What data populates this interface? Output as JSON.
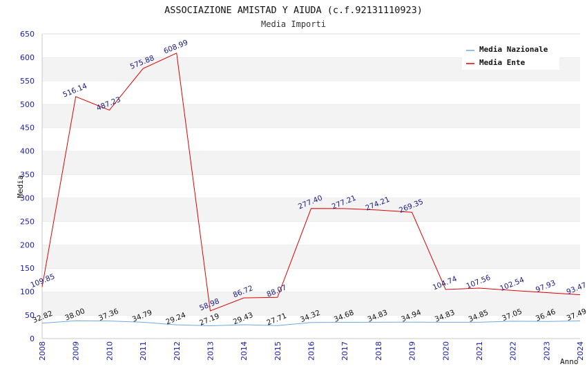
{
  "title": "ASSOCIAZIONE AMISTAD Y AIUDA (c.f.92131110923)",
  "subtitle": "Media Importi",
  "chart_data": {
    "type": "line",
    "title": "ASSOCIAZIONE AMISTAD Y AIUDA (c.f.92131110923)",
    "subtitle": "Media Importi",
    "xlabel": "Anno",
    "ylabel": "Media",
    "ylim": [
      0,
      650
    ],
    "yticks": [
      0,
      50,
      100,
      150,
      200,
      250,
      300,
      350,
      400,
      450,
      500,
      550,
      600,
      650
    ],
    "x": [
      "2008",
      "2009",
      "2010",
      "2011",
      "2012",
      "2013",
      "2014",
      "2015",
      "2016",
      "2017",
      "2018",
      "2019",
      "2020",
      "2021",
      "2022",
      "2023",
      "2024"
    ],
    "grid": "horizontal bands",
    "legend_position": "top-right",
    "series": [
      {
        "name": "Media Nazionale",
        "color": "#6fa8dc",
        "values": [
          32.82,
          38.0,
          37.36,
          34.79,
          29.24,
          27.19,
          29.43,
          27.71,
          34.32,
          34.68,
          34.83,
          34.94,
          34.83,
          34.85,
          37.05,
          36.46,
          37.49
        ],
        "labels": [
          "32.82",
          "38.00",
          "37.36",
          "34.79",
          "29.24",
          "27.19",
          "29.43",
          "27.71",
          "34.32",
          "34.68",
          "34.83",
          "34.94",
          "34.83",
          "34.85",
          "37.05",
          "36.46",
          "37.49"
        ]
      },
      {
        "name": "Media Ente",
        "color": "#dd0000",
        "values": [
          109.85,
          516.14,
          487.23,
          575.88,
          608.99,
          58.98,
          86.72,
          88.07,
          277.4,
          277.21,
          274.21,
          269.35,
          104.74,
          107.56,
          102.54,
          97.93,
          93.47
        ],
        "labels": [
          "109.85",
          "516.14",
          "487.23",
          "575.88",
          "608.99",
          "58.98",
          "86.72",
          "88.07",
          "277.40",
          "277.21",
          "274.21",
          "269.35",
          "104.74",
          "107.56",
          "102.54",
          "97.93",
          "93.47"
        ]
      }
    ]
  }
}
